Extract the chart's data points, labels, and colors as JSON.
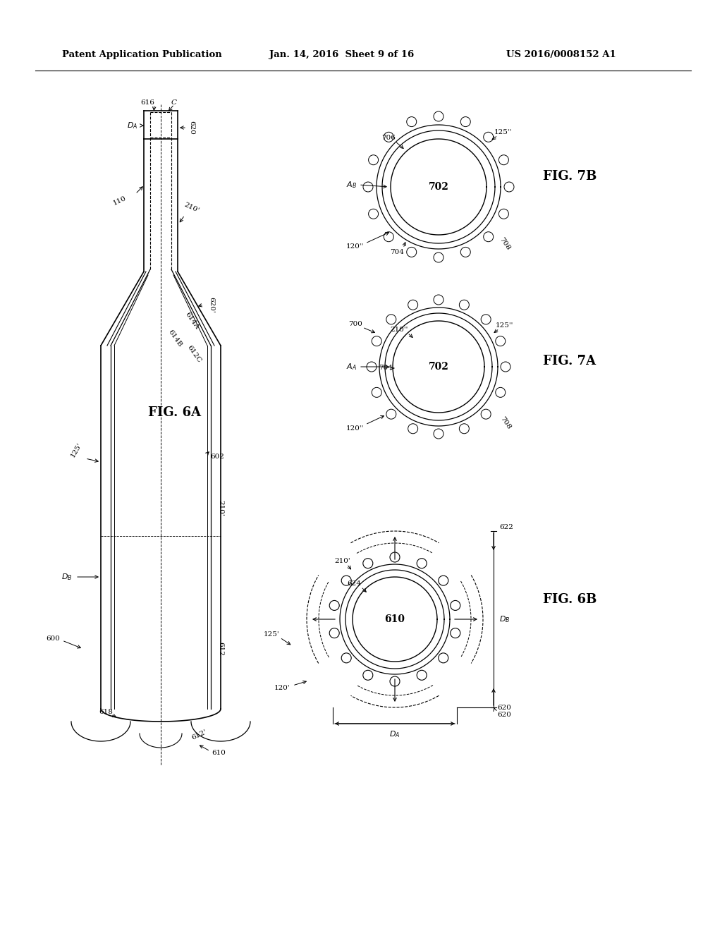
{
  "bg_color": "#ffffff",
  "header_left": "Patent Application Publication",
  "header_mid": "Jan. 14, 2016  Sheet 9 of 16",
  "header_right": "US 2016/0008152 A1",
  "fig6a_label": "FIG. 6A",
  "fig6b_label": "FIG. 6B",
  "fig7a_label": "FIG. 7A",
  "fig7b_label": "FIG. 7B"
}
